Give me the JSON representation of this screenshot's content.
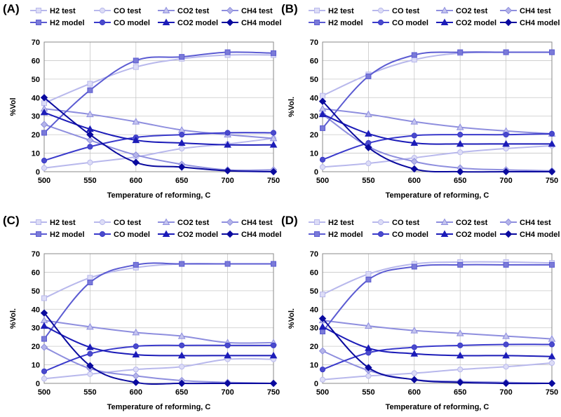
{
  "figure": {
    "series_styles": [
      {
        "name": "H2 test",
        "color": "#b8b8ec",
        "fill": "#dcdcf6",
        "marker": "square"
      },
      {
        "name": "CO test",
        "color": "#b8b8ec",
        "fill": "#dcdcf6",
        "marker": "circle"
      },
      {
        "name": "CO2 test",
        "color": "#8e8ede",
        "fill": "#c4c4ee",
        "marker": "triangle"
      },
      {
        "name": "CH4 test",
        "color": "#8e8ede",
        "fill": "#b4b4e8",
        "marker": "diamond"
      },
      {
        "name": "H2 model",
        "color": "#5b5bd2",
        "fill": "#7a7ad8",
        "marker": "square"
      },
      {
        "name": "CO model",
        "color": "#3a3acb",
        "fill": "#4a4acb",
        "marker": "circle"
      },
      {
        "name": "CO2 model",
        "color": "#1c1cb8",
        "fill": "#1c1cb8",
        "marker": "triangle"
      },
      {
        "name": "CH4 model",
        "color": "#0a0a9e",
        "fill": "#0a0a9e",
        "marker": "diamond"
      }
    ]
  },
  "chart_data": [
    {
      "panel_label": "(A)",
      "type": "line",
      "xlabel": "Temperature of reforming, C",
      "ylabel": "%Vol",
      "x": [
        500,
        550,
        600,
        650,
        700,
        750
      ],
      "xlim": [
        500,
        750
      ],
      "ylim": [
        0,
        70
      ],
      "x_ticks": [
        "500",
        "550",
        "600",
        "650",
        "700",
        "750"
      ],
      "y_ticks": [
        "0",
        "10",
        "20",
        "30",
        "40",
        "50",
        "60",
        "70"
      ],
      "grid": true,
      "legend_position": "top",
      "series": [
        {
          "name": "H2 test",
          "values": [
            37,
            47.5,
            56.5,
            61,
            63,
            63
          ]
        },
        {
          "name": "CO test",
          "values": [
            2,
            5,
            8,
            12.5,
            15,
            18
          ]
        },
        {
          "name": "CO2 test",
          "values": [
            34,
            31,
            27,
            22.5,
            20,
            18
          ]
        },
        {
          "name": "CH4 test",
          "values": [
            25.5,
            17,
            9,
            4,
            1,
            1
          ]
        },
        {
          "name": "H2 model",
          "values": [
            21,
            44,
            60,
            62,
            64.5,
            64
          ]
        },
        {
          "name": "CO model",
          "values": [
            6,
            13.5,
            18.5,
            20,
            21,
            21
          ]
        },
        {
          "name": "CO2 model",
          "values": [
            32,
            23,
            17,
            15.5,
            14.5,
            14.5
          ]
        },
        {
          "name": "CH4 model",
          "values": [
            40,
            20,
            5,
            2.5,
            0.5,
            0
          ]
        }
      ]
    },
    {
      "panel_label": "(B)",
      "type": "line",
      "xlabel": "Temperature of reforming, C",
      "ylabel": "%Vol.",
      "x": [
        500,
        550,
        600,
        650,
        700,
        750
      ],
      "xlim": [
        500,
        750
      ],
      "ylim": [
        0,
        70
      ],
      "x_ticks": [
        "500",
        "550",
        "600",
        "650",
        "700",
        "750"
      ],
      "y_ticks": [
        "0",
        "10",
        "20",
        "30",
        "40",
        "50",
        "60",
        "70"
      ],
      "grid": true,
      "legend_position": "top",
      "series": [
        {
          "name": "H2 test",
          "values": [
            41,
            52.5,
            60.5,
            64,
            64.5,
            64.5
          ]
        },
        {
          "name": "CO test",
          "values": [
            2.5,
            4.5,
            7.5,
            10.5,
            12.5,
            14
          ]
        },
        {
          "name": "CO2 test",
          "values": [
            34,
            31,
            27,
            24,
            22,
            20.5
          ]
        },
        {
          "name": "CH4 test",
          "values": [
            31,
            13.5,
            5.5,
            2,
            1,
            0.5
          ]
        },
        {
          "name": "H2 model",
          "values": [
            23.5,
            51.5,
            63,
            64.5,
            64.5,
            64.5
          ]
        },
        {
          "name": "CO model",
          "values": [
            6.5,
            15.5,
            19.5,
            20,
            20,
            20.5
          ]
        },
        {
          "name": "CO2 model",
          "values": [
            31,
            20.5,
            15.5,
            15,
            15,
            15
          ]
        },
        {
          "name": "CH4 model",
          "values": [
            38,
            13,
            1.5,
            0,
            0,
            0
          ]
        }
      ]
    },
    {
      "panel_label": "(C)",
      "type": "line",
      "xlabel": "Temperature of reforming, C",
      "ylabel": "%Vol.",
      "x": [
        500,
        550,
        600,
        650,
        700,
        750
      ],
      "xlim": [
        500,
        750
      ],
      "ylim": [
        0,
        70
      ],
      "x_ticks": [
        "500",
        "550",
        "600",
        "650",
        "700",
        "750"
      ],
      "y_ticks": [
        "0",
        "10",
        "20",
        "30",
        "40",
        "50",
        "60",
        "70"
      ],
      "grid": true,
      "legend_position": "top",
      "series": [
        {
          "name": "H2 test",
          "values": [
            46,
            57,
            62.5,
            64.5,
            64.5,
            64.5
          ]
        },
        {
          "name": "CO test",
          "values": [
            2.5,
            5,
            7.5,
            9,
            13,
            13
          ]
        },
        {
          "name": "CO2 test",
          "values": [
            34,
            30.5,
            27.5,
            25.5,
            22,
            22
          ]
        },
        {
          "name": "CH4 test",
          "values": [
            19.5,
            8,
            4,
            1.5,
            0.5,
            0
          ]
        },
        {
          "name": "H2 model",
          "values": [
            24,
            54.5,
            64,
            64.5,
            64.5,
            64.5
          ]
        },
        {
          "name": "CO model",
          "values": [
            6.5,
            16,
            20,
            20.5,
            20.5,
            20.5
          ]
        },
        {
          "name": "CO2 model",
          "values": [
            31,
            19.5,
            15.5,
            15,
            15,
            15
          ]
        },
        {
          "name": "CH4 model",
          "values": [
            38,
            9.5,
            0.5,
            0,
            0,
            0
          ]
        }
      ]
    },
    {
      "panel_label": "(D)",
      "type": "line",
      "xlabel": "Temperature of reforming, C",
      "ylabel": "%Vol.",
      "x": [
        500,
        550,
        600,
        650,
        700,
        750
      ],
      "xlim": [
        500,
        750
      ],
      "ylim": [
        0,
        70
      ],
      "x_ticks": [
        "500",
        "550",
        "600",
        "650",
        "700",
        "750"
      ],
      "y_ticks": [
        "0",
        "10",
        "20",
        "30",
        "40",
        "50",
        "60",
        "70"
      ],
      "grid": true,
      "legend_position": "top",
      "series": [
        {
          "name": "H2 test",
          "values": [
            48,
            59,
            64.5,
            65.5,
            65.5,
            65
          ]
        },
        {
          "name": "CO test",
          "values": [
            2,
            4,
            5.5,
            7.5,
            9,
            11
          ]
        },
        {
          "name": "CO2 test",
          "values": [
            34,
            31,
            28.5,
            27,
            25.5,
            24
          ]
        },
        {
          "name": "CH4 test",
          "values": [
            17.5,
            7,
            2,
            1,
            0.5,
            0
          ]
        },
        {
          "name": "H2 model",
          "values": [
            28,
            56,
            63,
            64,
            64,
            64
          ]
        },
        {
          "name": "CO model",
          "values": [
            7.5,
            16.5,
            19.5,
            20.5,
            21,
            21
          ]
        },
        {
          "name": "CO2 model",
          "values": [
            30.5,
            19,
            16,
            15,
            15,
            14.5
          ]
        },
        {
          "name": "CH4 model",
          "values": [
            35,
            8.5,
            2,
            0.5,
            0,
            0
          ]
        }
      ]
    }
  ]
}
